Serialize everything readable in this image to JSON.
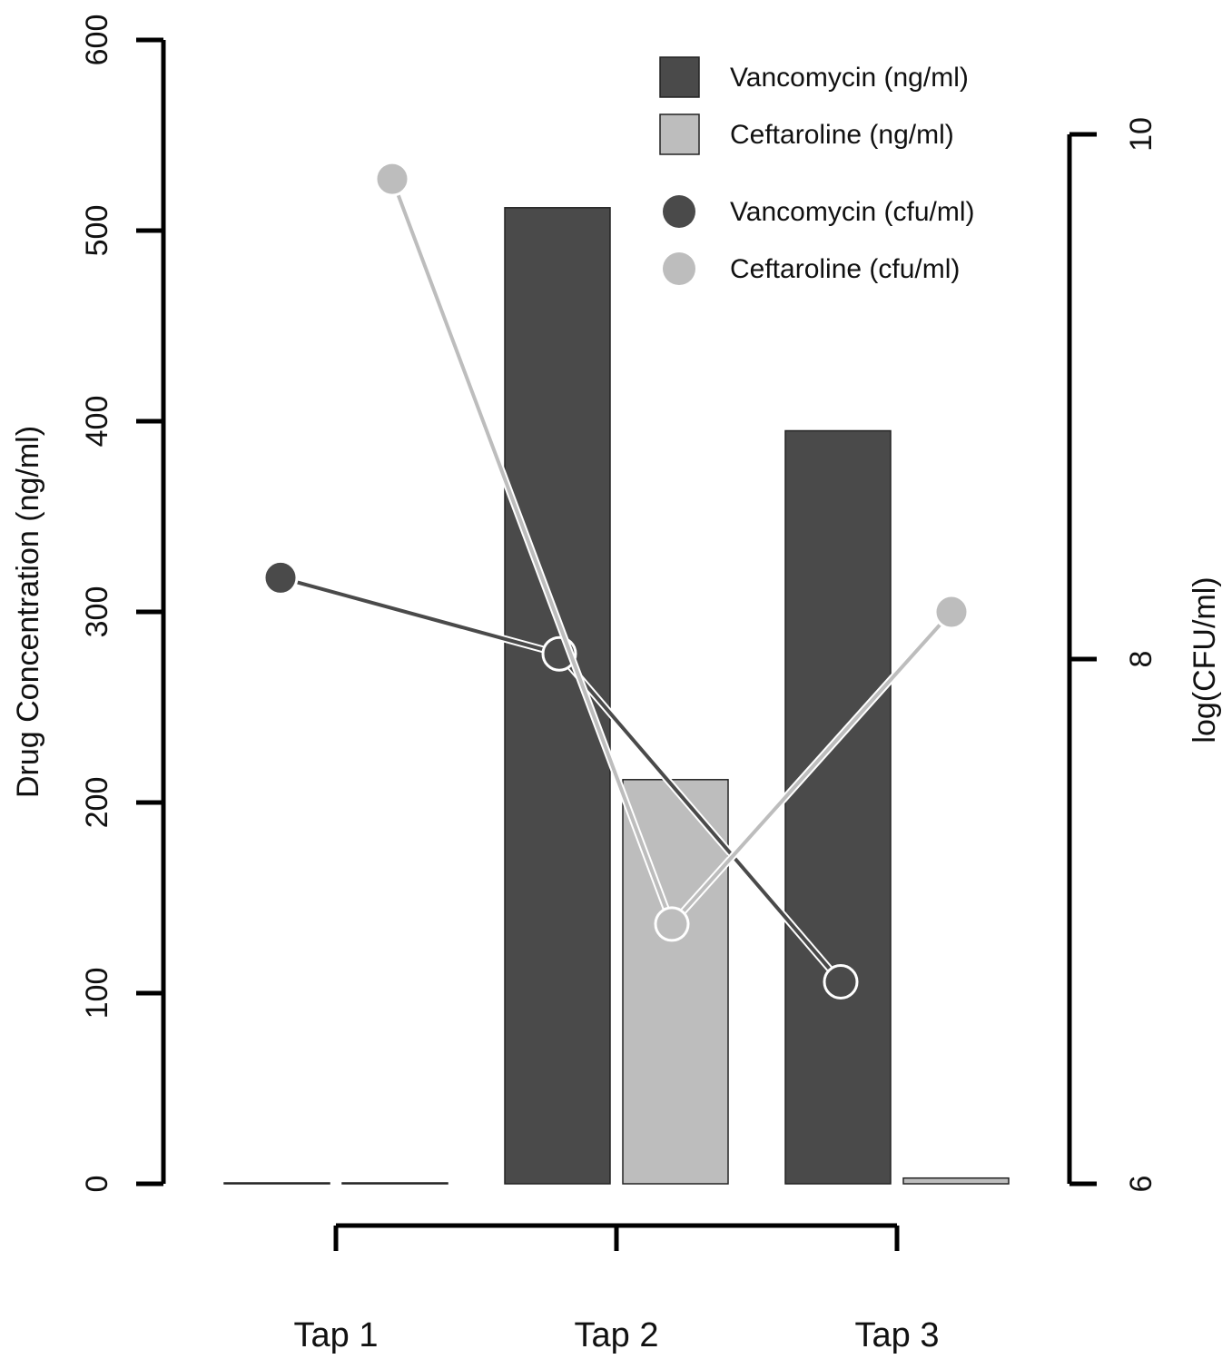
{
  "colors": {
    "vancomycin": "#4a4a4a",
    "ceftaroline": "#bdbdbd",
    "background": "#ffffff",
    "axis": "#000000"
  },
  "chart_data": {
    "type": "bar",
    "title": "",
    "xlabel": "",
    "categories": [
      "Tap 1",
      "Tap 2",
      "Tap 3"
    ],
    "ylabel": "Drug Concentration (ng/ml)",
    "ylim": [
      0,
      600
    ],
    "yticks": [
      0,
      100,
      200,
      300,
      400,
      500,
      600
    ],
    "y2label": "log(CFU/ml)",
    "y2lim": [
      6,
      10
    ],
    "y2ticks": [
      6,
      8,
      10
    ],
    "grid": false,
    "legend_position": "top-right",
    "series": [
      {
        "name": "Vancomycin (ng/ml)",
        "type": "bar",
        "axis": "left",
        "color": "#4a4a4a",
        "values": [
          0,
          512,
          395
        ]
      },
      {
        "name": "Ceftaroline (ng/ml)",
        "type": "bar",
        "axis": "left",
        "color": "#bdbdbd",
        "values": [
          0,
          212,
          3
        ]
      },
      {
        "name": "Vancomycin (cfu/ml)",
        "type": "line",
        "axis": "right",
        "color": "#4a4a4a",
        "values": [
          8.31,
          8.02,
          6.77
        ]
      },
      {
        "name": "Ceftaroline (cfu/ml)",
        "type": "line",
        "axis": "right",
        "color": "#bdbdbd",
        "values": [
          9.83,
          6.99,
          8.18
        ]
      }
    ]
  }
}
